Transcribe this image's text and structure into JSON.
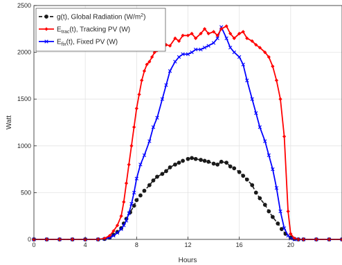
{
  "chart_data": {
    "type": "line",
    "xlabel": "Hours",
    "ylabel": "Watt",
    "xlim": [
      0,
      24
    ],
    "ylim": [
      0,
      2500
    ],
    "x_ticks": [
      0,
      4,
      8,
      12,
      16,
      20
    ],
    "y_ticks": [
      0,
      500,
      1000,
      1500,
      2000,
      2500
    ],
    "grid": true,
    "legend_position": "top-left",
    "series": [
      {
        "key": "global",
        "legend": {
          "prefix": "g(t), Global Radiation (W/m",
          "sup": "2",
          "suffix": ")"
        },
        "color": "#1a1a1a",
        "marker": "circle",
        "dashed": true,
        "x": [
          0,
          1,
          2,
          3,
          4,
          5,
          5.5,
          5.9,
          6.2,
          6.5,
          6.8,
          7.0,
          7.2,
          7.5,
          7.8,
          8.0,
          8.3,
          8.6,
          9.0,
          9.3,
          9.6,
          10.0,
          10.3,
          10.6,
          11.0,
          11.3,
          11.6,
          12.0,
          12.3,
          12.6,
          13.0,
          13.3,
          13.6,
          14.0,
          14.3,
          14.6,
          15.0,
          15.3,
          15.6,
          16.0,
          16.3,
          16.6,
          17.0,
          17.3,
          17.6,
          18.0,
          18.3,
          18.6,
          19.0,
          19.3,
          19.6,
          20.0,
          20.3,
          20.6,
          21.0,
          22.0,
          23.0,
          24.0
        ],
        "y": [
          0,
          0,
          0,
          0,
          0,
          0,
          5,
          20,
          50,
          80,
          120,
          170,
          220,
          290,
          360,
          420,
          470,
          520,
          580,
          630,
          670,
          700,
          730,
          770,
          800,
          820,
          840,
          860,
          870,
          860,
          850,
          840,
          830,
          810,
          800,
          830,
          820,
          780,
          760,
          720,
          680,
          640,
          580,
          500,
          440,
          370,
          300,
          240,
          170,
          110,
          60,
          20,
          5,
          0,
          0,
          0,
          0,
          0
        ]
      },
      {
        "key": "tracking",
        "legend": {
          "prefix": "E",
          "sub": "trac",
          "suffix": "(t), Tracking PV (W)"
        },
        "color": "#ff0000",
        "marker": "diamond",
        "dashed": false,
        "x": [
          0,
          1,
          2,
          3,
          4,
          5,
          5.5,
          5.9,
          6.2,
          6.5,
          6.8,
          7.0,
          7.2,
          7.4,
          7.6,
          7.8,
          8.0,
          8.2,
          8.4,
          8.6,
          8.8,
          9.0,
          9.2,
          9.4,
          9.6,
          9.8,
          10.0,
          10.3,
          10.6,
          11.0,
          11.3,
          11.6,
          12.0,
          12.3,
          12.6,
          13.0,
          13.3,
          13.6,
          14.0,
          14.3,
          14.6,
          15.0,
          15.3,
          15.6,
          16.0,
          16.3,
          16.6,
          17.0,
          17.3,
          17.6,
          18.0,
          18.3,
          18.6,
          18.9,
          19.2,
          19.5,
          19.8,
          20.0,
          20.3,
          20.6,
          21.0,
          22.0,
          23.0,
          24.0
        ],
        "y": [
          0,
          0,
          0,
          0,
          0,
          0,
          10,
          40,
          90,
          150,
          250,
          400,
          600,
          800,
          1000,
          1200,
          1400,
          1550,
          1700,
          1800,
          1870,
          1900,
          1950,
          2000,
          2020,
          2050,
          2050,
          2080,
          2070,
          2150,
          2120,
          2180,
          2180,
          2200,
          2150,
          2200,
          2250,
          2200,
          2220,
          2180,
          2250,
          2280,
          2200,
          2150,
          2200,
          2220,
          2150,
          2120,
          2080,
          2050,
          2000,
          1950,
          1850,
          1700,
          1500,
          1100,
          300,
          60,
          10,
          0,
          0,
          0,
          0,
          0
        ]
      },
      {
        "key": "fixed",
        "legend": {
          "prefix": "E",
          "sub": "fix",
          "suffix": "(t), Fixed PV (W)"
        },
        "color": "#0000ff",
        "marker": "x",
        "dashed": false,
        "x": [
          0,
          1,
          2,
          3,
          4,
          5,
          5.5,
          5.9,
          6.2,
          6.5,
          6.8,
          7.0,
          7.2,
          7.4,
          7.6,
          7.8,
          8.0,
          8.3,
          8.6,
          9.0,
          9.3,
          9.6,
          10.0,
          10.3,
          10.6,
          11.0,
          11.3,
          11.6,
          12.0,
          12.3,
          12.6,
          13.0,
          13.3,
          13.6,
          14.0,
          14.3,
          14.6,
          15.0,
          15.3,
          15.6,
          16.0,
          16.3,
          16.6,
          17.0,
          17.3,
          17.6,
          18.0,
          18.3,
          18.6,
          18.9,
          19.2,
          19.5,
          19.8,
          20.0,
          20.3,
          20.6,
          21.0,
          22.0,
          23.0,
          24.0
        ],
        "y": [
          0,
          0,
          0,
          0,
          0,
          0,
          5,
          20,
          40,
          70,
          110,
          150,
          200,
          280,
          380,
          500,
          650,
          800,
          900,
          1050,
          1200,
          1300,
          1500,
          1650,
          1800,
          1900,
          1950,
          1980,
          1980,
          2000,
          2030,
          2030,
          2050,
          2070,
          2100,
          2150,
          2270,
          2150,
          2050,
          2000,
          1950,
          1870,
          1700,
          1500,
          1350,
          1200,
          1050,
          900,
          750,
          550,
          300,
          120,
          40,
          10,
          0,
          0,
          0,
          0,
          0,
          0
        ]
      }
    ]
  }
}
